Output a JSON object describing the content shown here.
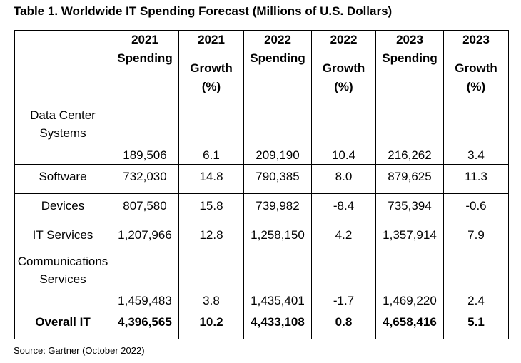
{
  "title": "Table 1. Worldwide IT Spending Forecast (Millions of U.S. Dollars)",
  "headers": [
    {
      "line1": "",
      "line2": "",
      "line3": ""
    },
    {
      "line1": "2021",
      "line2": "Spending",
      "line3": ""
    },
    {
      "line1": "2021",
      "line2": "Growth",
      "line3": "(%)"
    },
    {
      "line1": "2022",
      "line2": "Spending",
      "line3": ""
    },
    {
      "line1": "2022",
      "line2": "Growth",
      "line3": "(%)"
    },
    {
      "line1": "2023",
      "line2": "Spending",
      "line3": ""
    },
    {
      "line1": "2023",
      "line2": "Growth",
      "line3": "(%)"
    }
  ],
  "rows": [
    {
      "label_line1": "Data Center",
      "label_line2": "Systems",
      "values": [
        "189,506",
        "6.1",
        "209,190",
        "10.4",
        "216,262",
        "3.4"
      ]
    },
    {
      "label_line1": "Software",
      "label_line2": "",
      "values": [
        "732,030",
        "14.8",
        "790,385",
        "8.0",
        "879,625",
        "11.3"
      ]
    },
    {
      "label_line1": "Devices",
      "label_line2": "",
      "values": [
        "807,580",
        "15.8",
        "739,982",
        "-8.4",
        "735,394",
        "-0.6"
      ]
    },
    {
      "label_line1": "IT Services",
      "label_line2": "",
      "values": [
        "1,207,966",
        "12.8",
        "1,258,150",
        "4.2",
        "1,357,914",
        "7.9"
      ]
    },
    {
      "label_line1": "Communications",
      "label_line2": "Services",
      "values": [
        "1,459,483",
        "3.8",
        "1,435,401",
        "-1.7",
        "1,469,220",
        "2.4"
      ]
    }
  ],
  "total": {
    "label": "Overall IT",
    "values": [
      "4,396,565",
      "10.2",
      "4,433,108",
      "0.8",
      "4,658,416",
      "5.1"
    ]
  },
  "source": "Source: Gartner (October 2022)"
}
